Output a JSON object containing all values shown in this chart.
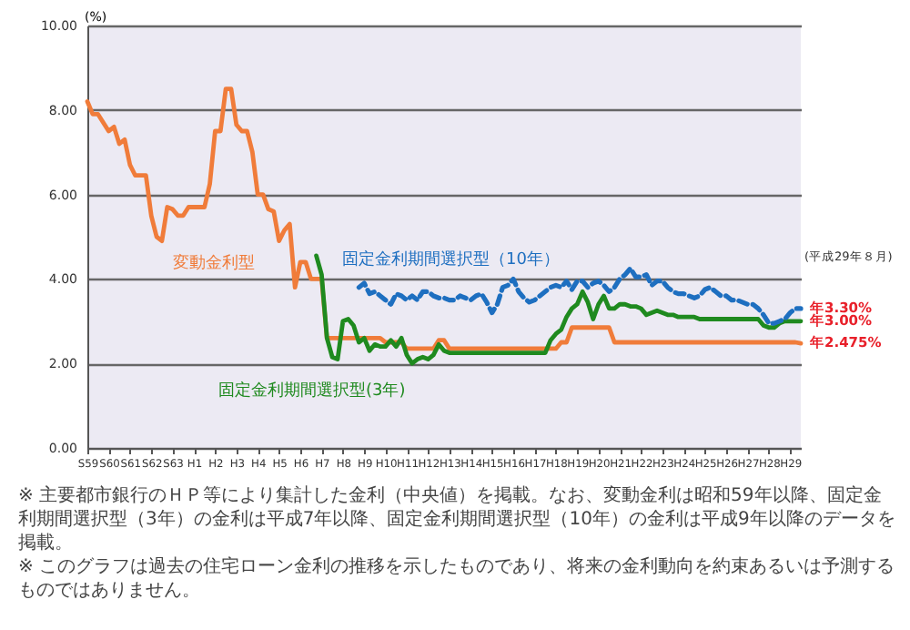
{
  "chart_data": {
    "type": "line",
    "ylabel": "(%)",
    "ylim": [
      0,
      10
    ],
    "categories": [
      "S59",
      null,
      null,
      null,
      "S60",
      null,
      null,
      null,
      "S61",
      null,
      null,
      null,
      "S62",
      null,
      null,
      null,
      "S63",
      null,
      null,
      null,
      "H1",
      null,
      null,
      null,
      "H2",
      null,
      null,
      null,
      "H3",
      null,
      null,
      null,
      "H4",
      null,
      null,
      null,
      "H5",
      null,
      null,
      null,
      "H6",
      null,
      null,
      null,
      "H7",
      null,
      null,
      null,
      "H8",
      null,
      null,
      null,
      "H9",
      null,
      null,
      null,
      "H10",
      null,
      null,
      null,
      "H11",
      null,
      null,
      null,
      "H12",
      null,
      null,
      null,
      "H13",
      null,
      null,
      null,
      "H14",
      null,
      null,
      null,
      "H15",
      null,
      null,
      null,
      "H16",
      null,
      null,
      null,
      "H17",
      null,
      null,
      null,
      "H18",
      null,
      null,
      null,
      "H19",
      null,
      null,
      null,
      "H20",
      null,
      null,
      null,
      "H21",
      null,
      null,
      null,
      "H22",
      null,
      null,
      null,
      "H23",
      null,
      null,
      null,
      "H24",
      null,
      null,
      null,
      "H25",
      null,
      null,
      null,
      "H26",
      null,
      null,
      null,
      "H27",
      null,
      null,
      null,
      "H28",
      null,
      null,
      null,
      "H29",
      null,
      null
    ],
    "yticks": [
      {
        "value": 0,
        "label": "0.00"
      },
      {
        "value": 2,
        "label": "2.00"
      },
      {
        "value": 4,
        "label": "4.00"
      },
      {
        "value": 6,
        "label": "6.00"
      },
      {
        "value": 8,
        "label": "8.00"
      },
      {
        "value": 10,
        "label": "10.00"
      }
    ],
    "grid": "y",
    "series": [
      {
        "name": "変動金利型",
        "color": "#f07c3a",
        "line_style": "solid",
        "values": [
          8.2,
          7.9,
          7.9,
          7.7,
          7.5,
          7.6,
          7.2,
          7.3,
          6.7,
          6.45,
          6.45,
          6.45,
          5.5,
          5.0,
          4.9,
          5.7,
          5.65,
          5.5,
          5.5,
          5.7,
          5.7,
          5.7,
          5.7,
          6.25,
          7.5,
          7.5,
          8.5,
          8.5,
          7.65,
          7.5,
          7.5,
          7.0,
          6.0,
          6.0,
          5.65,
          5.6,
          4.9,
          5.15,
          5.3,
          3.8,
          4.4,
          4.4,
          4.0,
          4.0,
          4.0,
          2.6,
          2.6,
          2.6,
          2.6,
          2.6,
          2.6,
          2.6,
          2.6,
          2.6,
          2.6,
          2.6,
          2.5,
          2.5,
          2.5,
          2.5,
          2.35,
          2.35,
          2.35,
          2.35,
          2.35,
          2.35,
          2.55,
          2.55,
          2.35,
          2.35,
          2.35,
          2.35,
          2.35,
          2.35,
          2.35,
          2.35,
          2.35,
          2.35,
          2.35,
          2.35,
          2.35,
          2.35,
          2.35,
          2.35,
          2.35,
          2.35,
          2.35,
          2.35,
          2.35,
          2.5,
          2.5,
          2.85,
          2.85,
          2.85,
          2.85,
          2.85,
          2.85,
          2.85,
          2.85,
          2.5,
          2.5,
          2.5,
          2.5,
          2.5,
          2.5,
          2.5,
          2.5,
          2.5,
          2.5,
          2.5,
          2.5,
          2.5,
          2.5,
          2.5,
          2.5,
          2.5,
          2.5,
          2.5,
          2.5,
          2.5,
          2.5,
          2.5,
          2.5,
          2.5,
          2.5,
          2.5,
          2.5,
          2.5,
          2.5,
          2.5,
          2.5,
          2.5,
          2.5,
          2.5,
          2.475
        ],
        "value_labels": [
          null,
          null,
          null,
          null,
          null,
          null,
          null,
          null,
          null,
          null,
          null,
          null,
          null,
          null,
          null,
          null,
          null,
          null,
          null,
          null,
          null,
          null,
          null,
          null,
          null,
          null,
          null,
          null,
          null,
          null,
          null,
          null,
          null,
          null,
          null,
          null,
          null,
          null,
          null,
          null,
          null,
          null,
          null,
          null,
          null,
          null,
          null,
          null,
          null,
          null,
          null,
          null,
          null,
          null,
          null,
          null,
          null,
          null,
          null,
          null,
          null,
          null,
          null,
          null,
          null,
          null,
          null,
          null,
          null,
          null,
          null,
          null,
          null,
          null,
          null,
          null,
          null,
          null,
          null,
          null,
          null,
          null,
          null,
          null,
          null,
          null,
          null,
          null,
          null,
          null,
          null,
          null,
          null,
          null,
          null,
          null,
          null,
          null,
          null,
          null,
          null,
          null,
          null,
          null,
          null,
          null,
          null,
          null,
          null,
          null,
          null,
          null,
          null,
          null,
          null,
          null,
          null,
          null,
          null,
          null,
          null,
          null,
          null,
          null,
          null,
          null,
          null,
          null,
          null,
          null,
          null,
          null,
          null,
          null,
          "年2.475%"
        ]
      },
      {
        "name": "固定金利期間選択型(3年)",
        "color": "#1f8a1f",
        "line_style": "solid",
        "values": [
          null,
          null,
          null,
          null,
          null,
          null,
          null,
          null,
          null,
          null,
          null,
          null,
          null,
          null,
          null,
          null,
          null,
          null,
          null,
          null,
          null,
          null,
          null,
          null,
          null,
          null,
          null,
          null,
          null,
          null,
          null,
          null,
          null,
          null,
          null,
          null,
          null,
          null,
          null,
          null,
          null,
          null,
          null,
          4.55,
          4.1,
          2.6,
          2.15,
          2.1,
          3.0,
          3.05,
          2.9,
          2.5,
          2.6,
          2.3,
          2.45,
          2.4,
          2.4,
          2.55,
          2.4,
          2.6,
          2.2,
          2.0,
          2.1,
          2.15,
          2.1,
          2.2,
          2.45,
          2.3,
          2.25,
          2.25,
          2.25,
          2.25,
          2.25,
          2.25,
          2.25,
          2.25,
          2.25,
          2.25,
          2.25,
          2.25,
          2.25,
          2.25,
          2.25,
          2.25,
          2.25,
          2.25,
          2.25,
          2.55,
          2.7,
          2.8,
          3.1,
          3.3,
          3.4,
          3.7,
          3.45,
          3.05,
          3.4,
          3.6,
          3.3,
          3.3,
          3.4,
          3.4,
          3.35,
          3.35,
          3.3,
          3.15,
          3.2,
          3.25,
          3.2,
          3.15,
          3.15,
          3.1,
          3.1,
          3.1,
          3.1,
          3.05,
          3.05,
          3.05,
          3.05,
          3.05,
          3.05,
          3.05,
          3.05,
          3.05,
          3.05,
          3.05,
          3.05,
          2.9,
          2.85,
          2.85,
          2.95,
          3.0,
          3.0,
          3.0,
          3.0
        ],
        "value_labels": [
          null,
          null,
          null,
          null,
          null,
          null,
          null,
          null,
          null,
          null,
          null,
          null,
          null,
          null,
          null,
          null,
          null,
          null,
          null,
          null,
          null,
          null,
          null,
          null,
          null,
          null,
          null,
          null,
          null,
          null,
          null,
          null,
          null,
          null,
          null,
          null,
          null,
          null,
          null,
          null,
          null,
          null,
          null,
          null,
          null,
          null,
          null,
          null,
          null,
          null,
          null,
          null,
          null,
          null,
          null,
          null,
          null,
          null,
          null,
          null,
          null,
          null,
          null,
          null,
          null,
          null,
          null,
          null,
          null,
          null,
          null,
          null,
          null,
          null,
          null,
          null,
          null,
          null,
          null,
          null,
          null,
          null,
          null,
          null,
          null,
          null,
          null,
          null,
          null,
          null,
          null,
          null,
          null,
          null,
          null,
          null,
          null,
          null,
          null,
          null,
          null,
          null,
          null,
          null,
          null,
          null,
          null,
          null,
          null,
          null,
          null,
          null,
          null,
          null,
          null,
          null,
          null,
          null,
          null,
          null,
          null,
          null,
          null,
          null,
          null,
          null,
          null,
          null,
          null,
          null,
          null,
          null,
          null,
          null,
          "年3.00%"
        ]
      },
      {
        "name": "固定金利期間選択型（10年）",
        "color": "#1e6fc0",
        "line_style": "dashed",
        "values": [
          null,
          null,
          null,
          null,
          null,
          null,
          null,
          null,
          null,
          null,
          null,
          null,
          null,
          null,
          null,
          null,
          null,
          null,
          null,
          null,
          null,
          null,
          null,
          null,
          null,
          null,
          null,
          null,
          null,
          null,
          null,
          null,
          null,
          null,
          null,
          null,
          null,
          null,
          null,
          null,
          null,
          null,
          null,
          null,
          null,
          null,
          null,
          null,
          null,
          null,
          null,
          3.8,
          3.9,
          3.65,
          3.7,
          3.6,
          3.5,
          3.4,
          3.65,
          3.6,
          3.5,
          3.6,
          3.5,
          3.7,
          3.7,
          3.6,
          3.55,
          3.55,
          3.5,
          3.5,
          3.6,
          3.55,
          3.5,
          3.6,
          3.65,
          3.45,
          3.2,
          3.4,
          3.8,
          3.85,
          4.0,
          3.7,
          3.55,
          3.45,
          3.5,
          3.6,
          3.7,
          3.8,
          3.85,
          3.8,
          3.95,
          3.75,
          3.95,
          3.95,
          3.8,
          3.9,
          3.95,
          3.85,
          3.7,
          3.8,
          4.0,
          4.1,
          4.25,
          4.05,
          4.05,
          4.1,
          3.85,
          3.95,
          3.95,
          3.8,
          3.7,
          3.65,
          3.65,
          3.6,
          3.55,
          3.6,
          3.75,
          3.8,
          3.7,
          3.6,
          3.6,
          3.5,
          3.5,
          3.45,
          3.4,
          3.4,
          3.3,
          3.15,
          2.95,
          2.95,
          3.0,
          3.05,
          3.2,
          3.3,
          3.3
        ],
        "value_labels": [
          null,
          null,
          null,
          null,
          null,
          null,
          null,
          null,
          null,
          null,
          null,
          null,
          null,
          null,
          null,
          null,
          null,
          null,
          null,
          null,
          null,
          null,
          null,
          null,
          null,
          null,
          null,
          null,
          null,
          null,
          null,
          null,
          null,
          null,
          null,
          null,
          null,
          null,
          null,
          null,
          null,
          null,
          null,
          null,
          null,
          null,
          null,
          null,
          null,
          null,
          null,
          null,
          null,
          null,
          null,
          null,
          null,
          null,
          null,
          null,
          null,
          null,
          null,
          null,
          null,
          null,
          null,
          null,
          null,
          null,
          null,
          null,
          null,
          null,
          null,
          null,
          null,
          null,
          null,
          null,
          null,
          null,
          null,
          null,
          null,
          null,
          null,
          null,
          null,
          null,
          null,
          null,
          null,
          null,
          null,
          null,
          null,
          null,
          null,
          null,
          null,
          null,
          null,
          null,
          null,
          null,
          null,
          null,
          null,
          null,
          null,
          null,
          null,
          null,
          null,
          null,
          null,
          null,
          null,
          null,
          null,
          null,
          null,
          null,
          null,
          null,
          null,
          null,
          null,
          null,
          null,
          null,
          null,
          null,
          "年3.30%"
        ]
      }
    ],
    "annotations": [
      "(平成29年８月)",
      "※ 主要都市銀行のＨＰ等により集計した金利（中央値）を掲載。なお、変動金利は昭和59年以降、固定金利期間選択型（3年）の金利は平成7年以降、固定金利期間選択型（10年）の金利は平成9年以降のデータを掲載。",
      "※ このグラフは過去の住宅ローン金利の推移を示したものであり、将来の金利動向を約束あるいは予測するものではありません。"
    ]
  }
}
